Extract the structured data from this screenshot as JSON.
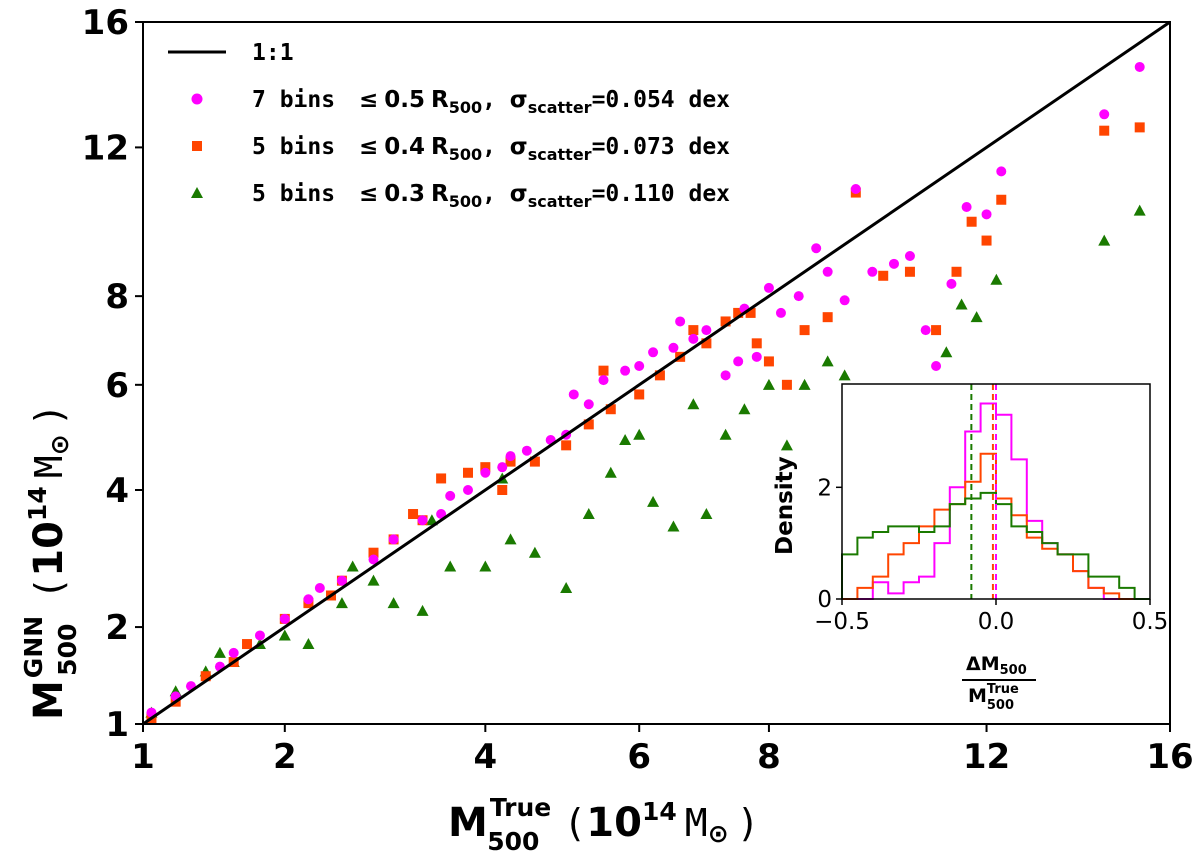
{
  "chart_data": [
    {
      "type": "scatter",
      "title": "",
      "xlabel": "M500True (10^14 M⊙)",
      "ylabel": "M500GNN (10^14 M⊙)",
      "xlabel_parts": {
        "main": "M",
        "sup": "True",
        "sub": "500",
        "unit_open": "(",
        "unit_base": "10",
        "unit_exp": "14",
        "unit_sym": "M",
        "unit_sub": "⊙",
        "unit_close": ")"
      },
      "ylabel_parts": {
        "main": "M",
        "sup": "GNN",
        "sub": "500",
        "unit_open": "(",
        "unit_base": "10",
        "unit_exp": "14",
        "unit_sym": "M",
        "unit_sub": "⊙",
        "unit_close": ")"
      },
      "xlim": [
        1,
        16
      ],
      "ylim": [
        1,
        16
      ],
      "scale": "sqrt",
      "xticks": [
        "1",
        "2",
        "4",
        "6",
        "8",
        "12",
        "16"
      ],
      "yticks": [
        "1",
        "2",
        "4",
        "6",
        "8",
        "12",
        "16"
      ],
      "grid": false,
      "legend_position": "top-left",
      "reference_line": {
        "label": "1:1",
        "color": "#000000"
      },
      "series": [
        {
          "name": "7 bins ≤0.5R500, σscatter=0.054 dex",
          "name_parts": {
            "a": "7 bins ",
            "le": "≤",
            "r": "0.5",
            "R": "R",
            "Rsub": "500",
            "mid": ", ",
            "sig": "σ",
            "sigsub": "scatter",
            "val": "=0.054 dex"
          },
          "color": "#ff00ff",
          "marker": "circle",
          "points": [
            [
              1.05,
              1.1
            ],
            [
              1.2,
              1.25
            ],
            [
              1.3,
              1.35
            ],
            [
              1.5,
              1.55
            ],
            [
              1.8,
              1.9
            ],
            [
              2.0,
              2.1
            ],
            [
              2.2,
              2.35
            ],
            [
              2.5,
              2.6
            ],
            [
              2.8,
              2.9
            ],
            [
              3.0,
              3.2
            ],
            [
              3.3,
              3.5
            ],
            [
              3.5,
              3.6
            ],
            [
              3.8,
              4.0
            ],
            [
              4.0,
              4.3
            ],
            [
              4.2,
              4.4
            ],
            [
              4.5,
              4.7
            ],
            [
              4.8,
              4.9
            ],
            [
              5.0,
              5.0
            ],
            [
              5.3,
              5.6
            ],
            [
              5.5,
              6.1
            ],
            [
              5.8,
              6.3
            ],
            [
              6.0,
              6.4
            ],
            [
              6.2,
              6.7
            ],
            [
              6.5,
              6.8
            ],
            [
              6.8,
              7.0
            ],
            [
              7.0,
              7.2
            ],
            [
              7.3,
              6.2
            ],
            [
              7.5,
              6.5
            ],
            [
              7.8,
              6.6
            ],
            [
              8.0,
              8.2
            ],
            [
              8.2,
              7.6
            ],
            [
              8.5,
              8.0
            ],
            [
              8.8,
              9.2
            ],
            [
              9.0,
              8.6
            ],
            [
              9.3,
              7.9
            ],
            [
              9.5,
              10.8
            ],
            [
              9.8,
              8.6
            ],
            [
              10.2,
              8.8
            ],
            [
              10.5,
              9.0
            ],
            [
              10.8,
              7.2
            ],
            [
              11.0,
              6.4
            ],
            [
              11.3,
              8.3
            ],
            [
              11.6,
              10.3
            ],
            [
              12.0,
              10.1
            ],
            [
              12.3,
              11.3
            ],
            [
              14.5,
              13.0
            ],
            [
              15.3,
              14.5
            ],
            [
              3.6,
              3.9
            ],
            [
              4.3,
              4.6
            ],
            [
              5.1,
              5.8
            ],
            [
              6.6,
              7.4
            ],
            [
              7.6,
              7.7
            ],
            [
              2.3,
              2.5
            ],
            [
              1.6,
              1.7
            ]
          ]
        },
        {
          "name": "5 bins ≤0.4R500, σscatter=0.073 dex",
          "name_parts": {
            "a": "5 bins ",
            "le": "≤",
            "r": "0.4",
            "R": "R",
            "Rsub": "500",
            "mid": ", ",
            "sig": "σ",
            "sigsub": "scatter",
            "val": "=0.073 dex"
          },
          "color": "#ff4500",
          "marker": "square",
          "points": [
            [
              1.05,
              1.05
            ],
            [
              1.2,
              1.2
            ],
            [
              1.4,
              1.45
            ],
            [
              1.7,
              1.8
            ],
            [
              2.0,
              2.1
            ],
            [
              2.2,
              2.3
            ],
            [
              2.5,
              2.6
            ],
            [
              2.8,
              3.0
            ],
            [
              3.0,
              3.2
            ],
            [
              3.2,
              3.6
            ],
            [
              3.5,
              4.2
            ],
            [
              3.8,
              4.3
            ],
            [
              4.0,
              4.4
            ],
            [
              4.3,
              4.5
            ],
            [
              4.6,
              4.5
            ],
            [
              5.0,
              4.8
            ],
            [
              5.3,
              5.2
            ],
            [
              5.6,
              5.5
            ],
            [
              6.0,
              5.8
            ],
            [
              6.3,
              6.2
            ],
            [
              6.6,
              6.6
            ],
            [
              7.0,
              6.9
            ],
            [
              7.3,
              7.4
            ],
            [
              7.5,
              7.6
            ],
            [
              7.8,
              6.9
            ],
            [
              8.0,
              6.5
            ],
            [
              8.3,
              6.0
            ],
            [
              8.6,
              7.2
            ],
            [
              9.0,
              7.5
            ],
            [
              9.5,
              10.7
            ],
            [
              10.0,
              8.5
            ],
            [
              10.5,
              8.6
            ],
            [
              11.0,
              7.2
            ],
            [
              11.4,
              8.6
            ],
            [
              11.7,
              9.9
            ],
            [
              12.0,
              9.4
            ],
            [
              12.3,
              10.5
            ],
            [
              14.5,
              12.5
            ],
            [
              15.3,
              12.6
            ],
            [
              2.4,
              2.4
            ],
            [
              3.3,
              3.5
            ],
            [
              4.2,
              4.0
            ],
            [
              5.5,
              6.3
            ],
            [
              6.8,
              7.2
            ],
            [
              7.7,
              7.6
            ],
            [
              1.6,
              1.6
            ]
          ]
        },
        {
          "name": "5 bins ≤0.3R500, σscatter=0.110 dex",
          "name_parts": {
            "a": "5 bins ",
            "le": "≤",
            "r": "0.3",
            "R": "R",
            "Rsub": "500",
            "mid": ", ",
            "sig": "σ",
            "sigsub": "scatter",
            "val": "=0.110 dex"
          },
          "color": "#1a7a00",
          "marker": "triangle",
          "points": [
            [
              1.05,
              1.1
            ],
            [
              1.2,
              1.3
            ],
            [
              1.4,
              1.5
            ],
            [
              1.6,
              1.6
            ],
            [
              1.8,
              1.8
            ],
            [
              2.0,
              1.9
            ],
            [
              2.2,
              1.8
            ],
            [
              2.5,
              2.3
            ],
            [
              2.8,
              2.6
            ],
            [
              3.0,
              2.3
            ],
            [
              3.3,
              2.2
            ],
            [
              3.6,
              2.8
            ],
            [
              4.0,
              2.8
            ],
            [
              4.3,
              3.2
            ],
            [
              4.6,
              3.0
            ],
            [
              5.0,
              2.5
            ],
            [
              5.3,
              3.6
            ],
            [
              5.6,
              4.3
            ],
            [
              6.0,
              5.0
            ],
            [
              6.2,
              3.8
            ],
            [
              6.5,
              3.4
            ],
            [
              7.0,
              3.6
            ],
            [
              7.3,
              5.0
            ],
            [
              7.6,
              5.5
            ],
            [
              8.0,
              6.0
            ],
            [
              8.3,
              4.8
            ],
            [
              8.6,
              6.0
            ],
            [
              9.0,
              6.5
            ],
            [
              9.3,
              6.2
            ],
            [
              9.8,
              5.6
            ],
            [
              10.3,
              5.0
            ],
            [
              10.8,
              4.5
            ],
            [
              11.2,
              6.7
            ],
            [
              11.5,
              7.8
            ],
            [
              11.8,
              7.5
            ],
            [
              12.2,
              8.4
            ],
            [
              14.5,
              9.4
            ],
            [
              15.3,
              10.2
            ],
            [
              3.4,
              3.5
            ],
            [
              4.2,
              4.2
            ],
            [
              5.8,
              4.9
            ],
            [
              6.8,
              5.6
            ],
            [
              2.6,
              2.8
            ],
            [
              1.5,
              1.7
            ]
          ]
        }
      ]
    },
    {
      "type": "histogram",
      "title": "",
      "xlabel": "ΔM500 / M500True",
      "xlabel_parts": {
        "num_main": "ΔM",
        "num_sub": "500",
        "den_main": "M",
        "den_sup": "True",
        "den_sub": "500"
      },
      "ylabel": "Density",
      "xlim": [
        -0.5,
        0.5
      ],
      "ylim": [
        0,
        3.85
      ],
      "xticks": [
        "−0.5",
        "0.0",
        "0.5"
      ],
      "yticks": [
        "0",
        "2"
      ],
      "bin_edges": [
        -0.5,
        -0.45,
        -0.4,
        -0.35,
        -0.3,
        -0.25,
        -0.2,
        -0.15,
        -0.1,
        -0.05,
        0.0,
        0.05,
        0.1,
        0.15,
        0.2,
        0.25,
        0.3,
        0.35,
        0.4,
        0.45,
        0.5
      ],
      "series": [
        {
          "color": "#ff00ff",
          "counts": [
            0,
            0,
            0.3,
            0.1,
            0.3,
            0.4,
            1.0,
            2.0,
            3.0,
            3.5,
            3.3,
            2.5,
            1.4,
            1.0,
            0.8,
            0.5,
            0.2,
            0,
            0,
            0
          ],
          "median_line": 0.0
        },
        {
          "color": "#ff4500",
          "counts": [
            0,
            0.2,
            0.4,
            0.8,
            1.0,
            1.3,
            1.6,
            1.7,
            2.1,
            2.6,
            1.8,
            1.5,
            1.1,
            0.9,
            0.8,
            0.5,
            0.2,
            0.1,
            0,
            0
          ],
          "median_line": -0.01
        },
        {
          "color": "#1a7a00",
          "counts": [
            0.8,
            1.1,
            1.2,
            1.3,
            1.3,
            1.2,
            1.3,
            1.7,
            1.8,
            1.9,
            1.7,
            1.3,
            1.2,
            1.0,
            0.8,
            0.8,
            0.4,
            0.4,
            0.2,
            0
          ],
          "median_line": -0.08
        }
      ]
    }
  ]
}
